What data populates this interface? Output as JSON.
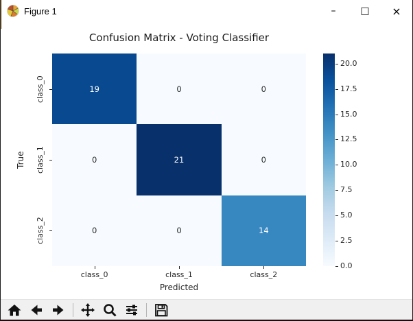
{
  "window": {
    "title": "Figure 1",
    "controls": {
      "minimize": "–",
      "maximize": "□",
      "close": "×"
    }
  },
  "chart_data": {
    "type": "heatmap",
    "title": "Confusion Matrix - Voting Classifier",
    "xlabel": "Predicted",
    "ylabel": "True",
    "x_categories": [
      "class_0",
      "class_1",
      "class_2"
    ],
    "y_categories": [
      "class_0",
      "class_1",
      "class_2"
    ],
    "matrix": [
      [
        19,
        0,
        0
      ],
      [
        0,
        21,
        0
      ],
      [
        0,
        0,
        14
      ]
    ],
    "vmin": 0,
    "vmax": 21,
    "colormap": "Blues",
    "colorbar_tick_labels": [
      "0.0",
      "2.5",
      "5.0",
      "7.5",
      "10.0",
      "12.5",
      "15.0",
      "17.5",
      "20.0"
    ],
    "colorbar_tick_values": [
      0,
      2.5,
      5,
      7.5,
      10,
      12.5,
      15,
      17.5,
      20
    ],
    "annotation_text_light": "#ffffff",
    "annotation_text_dark": "#262626",
    "legend_position": "right",
    "grid": false
  },
  "toolbar": {
    "icons": [
      "home-icon",
      "back-icon",
      "forward-icon",
      "pan-icon",
      "zoom-icon",
      "configure-subplots-icon",
      "save-icon"
    ]
  }
}
